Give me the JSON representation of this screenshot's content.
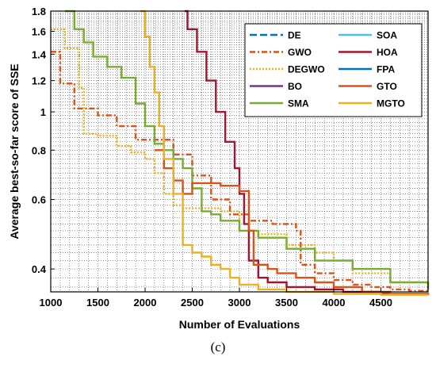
{
  "caption": "(c)",
  "chart_data": {
    "type": "line",
    "xlabel": "Number of Evaluations",
    "ylabel": "Average best-so-far score of SSE",
    "xlim": [
      1000,
      5000
    ],
    "ylim": [
      0.35,
      1.8
    ],
    "yscale": "log",
    "grid": true,
    "legend_position": "top-right",
    "xticks": [
      1000,
      1500,
      2000,
      2500,
      3000,
      3500,
      4000,
      4500
    ],
    "yticks": [
      0.4,
      0.6,
      0.8,
      1,
      1.2,
      1.4,
      1.6,
      1.8
    ],
    "xtick_labels": [
      "1000",
      "1500",
      "2000",
      "2500",
      "3000",
      "3500",
      "4000",
      "4500"
    ],
    "ytick_labels": [
      "0.4",
      "0.6",
      "0.8",
      "1",
      "1.2",
      "1.4",
      "1.6",
      "1.8"
    ],
    "series": [
      {
        "name": "DE",
        "color": "#0072BD",
        "dash": "long",
        "x": [],
        "y": []
      },
      {
        "name": "GWO",
        "color": "#D95319",
        "dash": "dashdot",
        "x": [
          1000,
          1100,
          1250,
          1500,
          1700,
          1900,
          2100,
          2300,
          2500,
          2700,
          2900,
          3100,
          3350,
          3600,
          3650,
          3800,
          4000,
          4200,
          4400,
          4600,
          4800,
          5000
        ],
        "y": [
          1.42,
          1.18,
          1.02,
          0.98,
          0.92,
          0.85,
          0.85,
          0.78,
          0.69,
          0.6,
          0.55,
          0.53,
          0.52,
          0.5,
          0.41,
          0.39,
          0.375,
          0.365,
          0.36,
          0.355,
          0.352,
          0.35
        ]
      },
      {
        "name": "DEGWO",
        "color": "#EDB120",
        "dash": "dotted",
        "x": [
          1000,
          1150,
          1300,
          1350,
          1500,
          1700,
          1850,
          2000,
          2100,
          2200,
          2300,
          2400,
          2600,
          2800,
          3000,
          3200,
          3500,
          3800,
          4000,
          4200,
          4600,
          5000
        ],
        "y": [
          1.62,
          1.45,
          1.15,
          0.88,
          0.87,
          0.82,
          0.79,
          0.76,
          0.7,
          0.62,
          0.58,
          0.57,
          0.57,
          0.56,
          0.5,
          0.49,
          0.46,
          0.44,
          0.42,
          0.39,
          0.37,
          0.36
        ]
      },
      {
        "name": "BO",
        "color": "#7E2F8E",
        "dash": "solid",
        "x": [],
        "y": []
      },
      {
        "name": "SMA",
        "color": "#77AC30",
        "dash": "solid",
        "x": [
          1150,
          1250,
          1350,
          1450,
          1600,
          1750,
          1900,
          2000,
          2100,
          2200,
          2300,
          2400,
          2500,
          2600,
          2700,
          2800,
          3000,
          3200,
          3500,
          3800,
          4200,
          4600,
          5000
        ],
        "y": [
          1.8,
          1.62,
          1.5,
          1.38,
          1.3,
          1.22,
          1.05,
          0.92,
          0.83,
          0.8,
          0.76,
          0.72,
          0.64,
          0.56,
          0.55,
          0.53,
          0.5,
          0.48,
          0.45,
          0.42,
          0.4,
          0.37,
          0.355
        ]
      },
      {
        "name": "SOA",
        "color": "#4DBEEE",
        "dash": "solid",
        "x": [],
        "y": []
      },
      {
        "name": "HOA",
        "color": "#A2142F",
        "dash": "solid",
        "x": [
          2420,
          2450,
          2550,
          2650,
          2750,
          2850,
          2950,
          3000,
          3050,
          3100,
          3200,
          3300,
          3500,
          3800,
          4100,
          4500,
          5000
        ],
        "y": [
          1.8,
          1.62,
          1.42,
          1.2,
          1.0,
          0.84,
          0.72,
          0.62,
          0.52,
          0.42,
          0.38,
          0.37,
          0.36,
          0.355,
          0.35,
          0.346,
          0.344
        ]
      },
      {
        "name": "FPA",
        "color": "#0072BD",
        "dash": "solid",
        "x": [],
        "y": []
      },
      {
        "name": "GTO",
        "color": "#D95319",
        "dash": "solid",
        "x": [
          2100,
          2200,
          2300,
          2400,
          2500,
          2600,
          2800,
          3000,
          3100,
          3150,
          3300,
          3400,
          3600,
          3800,
          4000,
          4300,
          4600,
          5000
        ],
        "y": [
          0.8,
          0.72,
          0.67,
          0.62,
          0.66,
          0.66,
          0.65,
          0.63,
          0.5,
          0.41,
          0.4,
          0.39,
          0.38,
          0.37,
          0.36,
          0.35,
          0.346,
          0.344
        ]
      },
      {
        "name": "MGTO",
        "color": "#EDB120",
        "dash": "solid",
        "x": [
          1950,
          2000,
          2050,
          2100,
          2150,
          2200,
          2300,
          2400,
          2500,
          2600,
          2700,
          2800,
          2900,
          3000,
          3200,
          3500,
          4000,
          4500,
          5000
        ],
        "y": [
          1.8,
          1.55,
          1.3,
          1.12,
          0.92,
          0.76,
          0.62,
          0.46,
          0.44,
          0.43,
          0.41,
          0.4,
          0.38,
          0.365,
          0.355,
          0.35,
          0.346,
          0.344,
          0.344
        ]
      }
    ]
  }
}
